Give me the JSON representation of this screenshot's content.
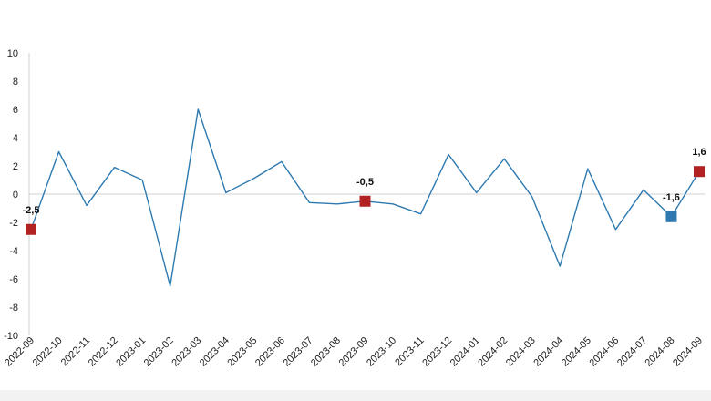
{
  "chart_data": {
    "type": "line",
    "title": "",
    "xlabel": "",
    "ylabel": "",
    "ylim": [
      -10,
      10
    ],
    "yticks": [
      10,
      8,
      6,
      4,
      2,
      0,
      -2,
      -4,
      -6,
      -8,
      -10
    ],
    "grid": false,
    "legend": "none",
    "categories": [
      "2022-09",
      "2022-10",
      "2022-11",
      "2022-12",
      "2023-01",
      "2023-02",
      "2023-03",
      "2023-04",
      "2023-05",
      "2023-06",
      "2023-07",
      "2023-08",
      "2023-09",
      "2023-10",
      "2023-11",
      "2023-12",
      "2024-01",
      "2024-02",
      "2024-03",
      "2024-04",
      "2024-05",
      "2024-06",
      "2024-07",
      "2024-08",
      "2024-09"
    ],
    "series": [
      {
        "values": [
          -2.5,
          3.0,
          -0.8,
          1.9,
          1.0,
          -6.5,
          6.0,
          0.1,
          1.1,
          2.3,
          -0.6,
          -0.7,
          -0.5,
          -0.7,
          -1.4,
          2.8,
          0.1,
          2.5,
          -0.2,
          -5.1,
          1.8,
          -2.5,
          0.3,
          -1.6,
          1.6
        ],
        "color": "#2e7ab0"
      }
    ],
    "highlights": [
      {
        "category": "2022-09",
        "value": -2.5,
        "label": "-2,5",
        "color": "#b22222"
      },
      {
        "category": "2023-09",
        "value": -0.5,
        "label": "-0,5",
        "color": "#b22222"
      },
      {
        "category": "2024-08",
        "value": -1.6,
        "label": "-1,6",
        "color": "#2e7ab0"
      },
      {
        "category": "2024-09",
        "value": 1.6,
        "label": "1,6",
        "color": "#b22222"
      }
    ],
    "colors": {
      "line": "#2e7ab0",
      "highlight_red": "#b22222",
      "highlight_blue": "#2e7ab0",
      "axis": "#d0d0d0"
    }
  }
}
